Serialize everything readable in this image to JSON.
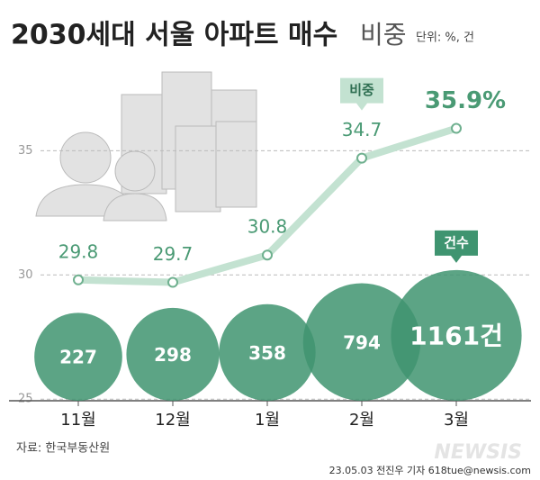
{
  "chart_data": {
    "type": "line-bubble",
    "title": [
      "2030세대 서울 아파트 매수",
      "비중"
    ],
    "unit": "단위: %, 건",
    "categories": [
      "11월",
      "12월",
      "1월",
      "2월",
      "3월"
    ],
    "series": [
      {
        "name": "비중",
        "color": "#c3e2d1",
        "values": [
          29.8,
          29.7,
          30.8,
          34.7,
          35.9
        ],
        "value_labels": [
          "29.8",
          "29.7",
          "30.8",
          "34.7",
          "35.9%"
        ]
      },
      {
        "name": "건수",
        "color": "#3f9470",
        "values": [
          227,
          298,
          358,
          794,
          1161
        ],
        "value_labels": [
          "227",
          "298",
          "358",
          "794",
          "1161건"
        ]
      }
    ],
    "ylim": [
      24.5,
      39
    ],
    "yticks": [
      25,
      30,
      35
    ],
    "grid": true,
    "source": "자료: 한국부동산원",
    "credit": "23.05.03 전진우 기자 618tue@newsis.com",
    "watermark": "NEWSIS"
  }
}
